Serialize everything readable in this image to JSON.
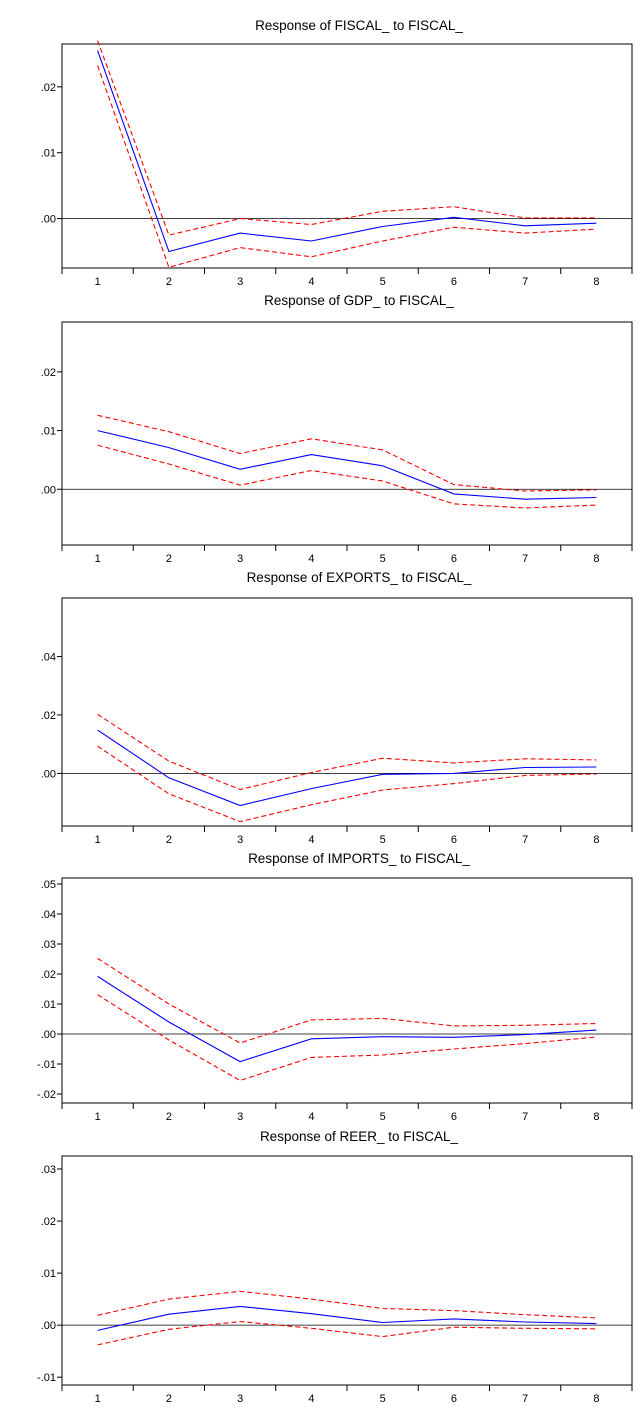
{
  "colors": {
    "response": "#0000ff",
    "bands": "#ff0000",
    "zero_line": "#000000",
    "frame": "#000000"
  },
  "chart_data": [
    {
      "type": "line",
      "title": "Response of FISCAL_ to FISCAL_",
      "x": [
        1,
        2,
        3,
        4,
        5,
        6,
        7,
        8
      ],
      "ylim": [
        -0.0075,
        0.0265
      ],
      "yticks": [
        ".00",
        ".01",
        ".02"
      ],
      "ytick_values": [
        0,
        0.01,
        0.02
      ],
      "grid": false,
      "series": [
        {
          "role": "response",
          "style": "solid",
          "values": [
            0.0255,
            -0.005,
            -0.0022,
            -0.0034,
            -0.0012,
            0.0002,
            -0.0011,
            -0.0007
          ]
        },
        {
          "role": "upper",
          "style": "dashed",
          "values": [
            0.027,
            -0.0025,
            0.0,
            -0.0009,
            0.0011,
            0.0018,
            0.0001,
            0.0001
          ]
        },
        {
          "role": "lower",
          "style": "dashed",
          "values": [
            0.0232,
            -0.0074,
            -0.0044,
            -0.0058,
            -0.0034,
            -0.0013,
            -0.0022,
            -0.0016
          ]
        }
      ]
    },
    {
      "type": "line",
      "title": "Response of GDP_ to FISCAL_",
      "x": [
        1,
        2,
        3,
        4,
        5,
        6,
        7,
        8
      ],
      "ylim": [
        -0.0095,
        0.0285
      ],
      "yticks": [
        ".00",
        ".01",
        ".02"
      ],
      "ytick_values": [
        0,
        0.01,
        0.02
      ],
      "grid": false,
      "series": [
        {
          "role": "response",
          "style": "solid",
          "values": [
            0.01,
            0.0071,
            0.0034,
            0.0059,
            0.004,
            -0.0008,
            -0.0017,
            -0.0014
          ]
        },
        {
          "role": "upper",
          "style": "dashed",
          "values": [
            0.0126,
            0.0098,
            0.0061,
            0.0086,
            0.0067,
            0.0008,
            -0.0003,
            -0.0001
          ]
        },
        {
          "role": "lower",
          "style": "dashed",
          "values": [
            0.0075,
            0.0043,
            0.0007,
            0.0032,
            0.0014,
            -0.0025,
            -0.0032,
            -0.0027
          ]
        }
      ]
    },
    {
      "type": "line",
      "title": "Response of EXPORTS_ to FISCAL_",
      "x": [
        1,
        2,
        3,
        4,
        5,
        6,
        7,
        8
      ],
      "ylim": [
        -0.018,
        0.06
      ],
      "yticks": [
        ".00",
        ".02",
        ".04"
      ],
      "ytick_values": [
        0,
        0.02,
        0.04
      ],
      "grid": false,
      "series": [
        {
          "role": "response",
          "style": "solid",
          "values": [
            0.0148,
            -0.0015,
            -0.011,
            -0.0052,
            -0.0003,
            0.0,
            0.002,
            0.0022
          ]
        },
        {
          "role": "upper",
          "style": "dashed",
          "values": [
            0.0202,
            0.0042,
            -0.0055,
            0.0003,
            0.0052,
            0.0036,
            0.005,
            0.0046
          ]
        },
        {
          "role": "lower",
          "style": "dashed",
          "values": [
            0.0093,
            -0.007,
            -0.0165,
            -0.0107,
            -0.0057,
            -0.0035,
            -0.0007,
            -0.0002
          ]
        }
      ]
    },
    {
      "type": "line",
      "title": "Response of IMPORTS_ to FISCAL_",
      "x": [
        1,
        2,
        3,
        4,
        5,
        6,
        7,
        8
      ],
      "ylim": [
        -0.023,
        0.052
      ],
      "yticks": [
        "-.02",
        "-.01",
        ".00",
        ".01",
        ".02",
        ".03",
        ".04",
        ".05"
      ],
      "ytick_values": [
        -0.02,
        -0.01,
        0,
        0.01,
        0.02,
        0.03,
        0.04,
        0.05
      ],
      "grid": false,
      "series": [
        {
          "role": "response",
          "style": "solid",
          "values": [
            0.0192,
            0.004,
            -0.0092,
            -0.0016,
            -0.0009,
            -0.0011,
            -0.0002,
            0.0013
          ]
        },
        {
          "role": "upper",
          "style": "dashed",
          "values": [
            0.0252,
            0.01,
            -0.003,
            0.0047,
            0.0052,
            0.0027,
            0.0029,
            0.0035
          ]
        },
        {
          "role": "lower",
          "style": "dashed",
          "values": [
            0.0131,
            -0.002,
            -0.0155,
            -0.0078,
            -0.007,
            -0.005,
            -0.0032,
            -0.001
          ]
        }
      ]
    },
    {
      "type": "line",
      "title": "Response of REER_ to FISCAL_",
      "x": [
        1,
        2,
        3,
        4,
        5,
        6,
        7,
        8
      ],
      "ylim": [
        -0.0115,
        0.0325
      ],
      "yticks": [
        "-.01",
        ".00",
        ".01",
        ".02",
        ".03"
      ],
      "ytick_values": [
        -0.01,
        0,
        0.01,
        0.02,
        0.03
      ],
      "grid": false,
      "series": [
        {
          "role": "response",
          "style": "solid",
          "values": [
            -0.001,
            0.0021,
            0.0036,
            0.0022,
            0.0005,
            0.0012,
            0.0006,
            0.0003
          ]
        },
        {
          "role": "upper",
          "style": "dashed",
          "values": [
            0.0019,
            0.005,
            0.0065,
            0.005,
            0.0032,
            0.0028,
            0.002,
            0.0014
          ]
        },
        {
          "role": "lower",
          "style": "dashed",
          "values": [
            -0.0038,
            -0.0008,
            0.0007,
            -0.0006,
            -0.0022,
            -0.0004,
            -0.0006,
            -0.0007
          ]
        }
      ]
    }
  ]
}
